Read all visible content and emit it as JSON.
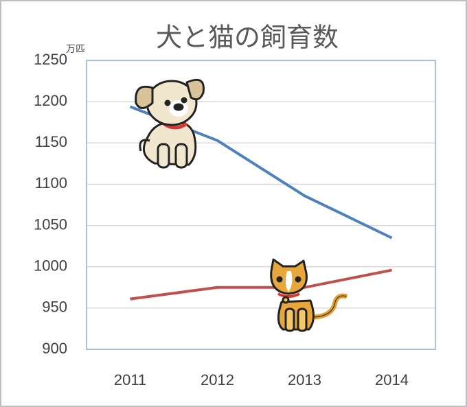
{
  "chart_data": {
    "type": "line",
    "title": "犬と猫の飼育数",
    "unit": "万匹",
    "categories": [
      "2011",
      "2012",
      "2013",
      "2014"
    ],
    "series": [
      {
        "color": "#4f81bd",
        "values": [
          1194,
          1153,
          1086,
          1035
        ]
      },
      {
        "color": "#c0504d",
        "values": [
          961,
          975,
          975,
          996
        ]
      }
    ],
    "ylim": [
      900,
      1250
    ],
    "yticks": [
      900,
      950,
      1000,
      1050,
      1100,
      1150,
      1200,
      1250
    ],
    "grid": true
  }
}
